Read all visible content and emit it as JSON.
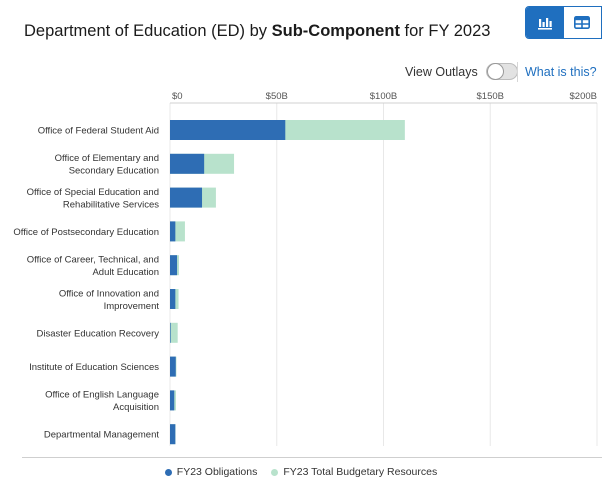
{
  "header": {
    "title_prefix": "Department of Education (ED) by ",
    "title_bold": "Sub-Component",
    "title_suffix": " for FY 2023"
  },
  "view_toggle": {
    "chart_icon": "bar-chart-icon",
    "table_icon": "table-icon",
    "active": "chart"
  },
  "controls": {
    "outlays_label": "View Outlays",
    "outlays_on": false,
    "what_is_this": "What is this?",
    "chevron_icon": "chevron-down-icon"
  },
  "colors": {
    "obligations": "#2e6db4",
    "resources": "#b8e2cc",
    "grid": "#e8e8e8"
  },
  "chart_data": {
    "type": "bar",
    "orientation": "horizontal",
    "stacked": "overlay",
    "title": "Department of Education (ED) by Sub-Component for FY 2023",
    "xlim": [
      0,
      200
    ],
    "x_ticks": [
      "$0",
      "$50B",
      "$100B",
      "$150B",
      "$200B"
    ],
    "x_tick_values": [
      0,
      50,
      100,
      150,
      200
    ],
    "categories": [
      [
        "Office of Federal Student Aid"
      ],
      [
        "Office of Elementary and",
        "Secondary Education"
      ],
      [
        "Office of Special Education and",
        "Rehabilitative Services"
      ],
      [
        "Office of Postsecondary Education"
      ],
      [
        "Office of Career, Technical, and",
        "Adult Education"
      ],
      [
        "Office of Innovation and",
        "Improvement"
      ],
      [
        "Disaster Education Recovery"
      ],
      [
        "Institute of Education Sciences"
      ],
      [
        "Office of English Language",
        "Acquisition"
      ],
      [
        "Departmental Management"
      ]
    ],
    "series": [
      {
        "name": "FY23 Obligations",
        "values": [
          54,
          16,
          15,
          2.5,
          3.3,
          2.5,
          0.3,
          2.7,
          2.0,
          2.5
        ]
      },
      {
        "name": "FY23 Total Budgetary Resources",
        "values": [
          110,
          30,
          21.5,
          7.0,
          4.2,
          4.0,
          3.6,
          3.0,
          2.8,
          2.6
        ]
      }
    ],
    "grid": true,
    "legend_position": "bottom"
  }
}
